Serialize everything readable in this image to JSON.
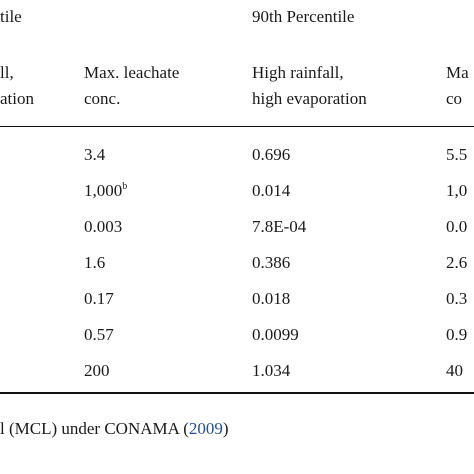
{
  "table": {
    "group_headers": {
      "left": "tile",
      "right": "90th Percentile"
    },
    "column_headers": {
      "c1": [
        "ll,",
        "ation"
      ],
      "c2": [
        "Max. leachate",
        "conc."
      ],
      "c3": [
        "High rainfall,",
        "high evaporation"
      ],
      "c4": [
        "Ma",
        "co"
      ]
    },
    "rows": [
      {
        "c2": "3.4",
        "c3": "0.696",
        "c4": "5.5"
      },
      {
        "c2": "1,000",
        "c2_sup": "b",
        "c3": "0.014",
        "c4": "1,0"
      },
      {
        "c2": "0.003",
        "c3": "7.8E-04",
        "c4": "0.0"
      },
      {
        "c2": "1.6",
        "c3": "0.386",
        "c4": "2.6"
      },
      {
        "c2": "0.17",
        "c3": "0.018",
        "c4": "0.3"
      },
      {
        "c2": "0.57",
        "c3": "0.0099",
        "c4": "0.9"
      },
      {
        "c2": "200",
        "c3": "1.034",
        "c4": "40"
      }
    ]
  },
  "footnote": {
    "text": "l (MCL) under CONAMA (",
    "year": "2009",
    "close": ")"
  }
}
